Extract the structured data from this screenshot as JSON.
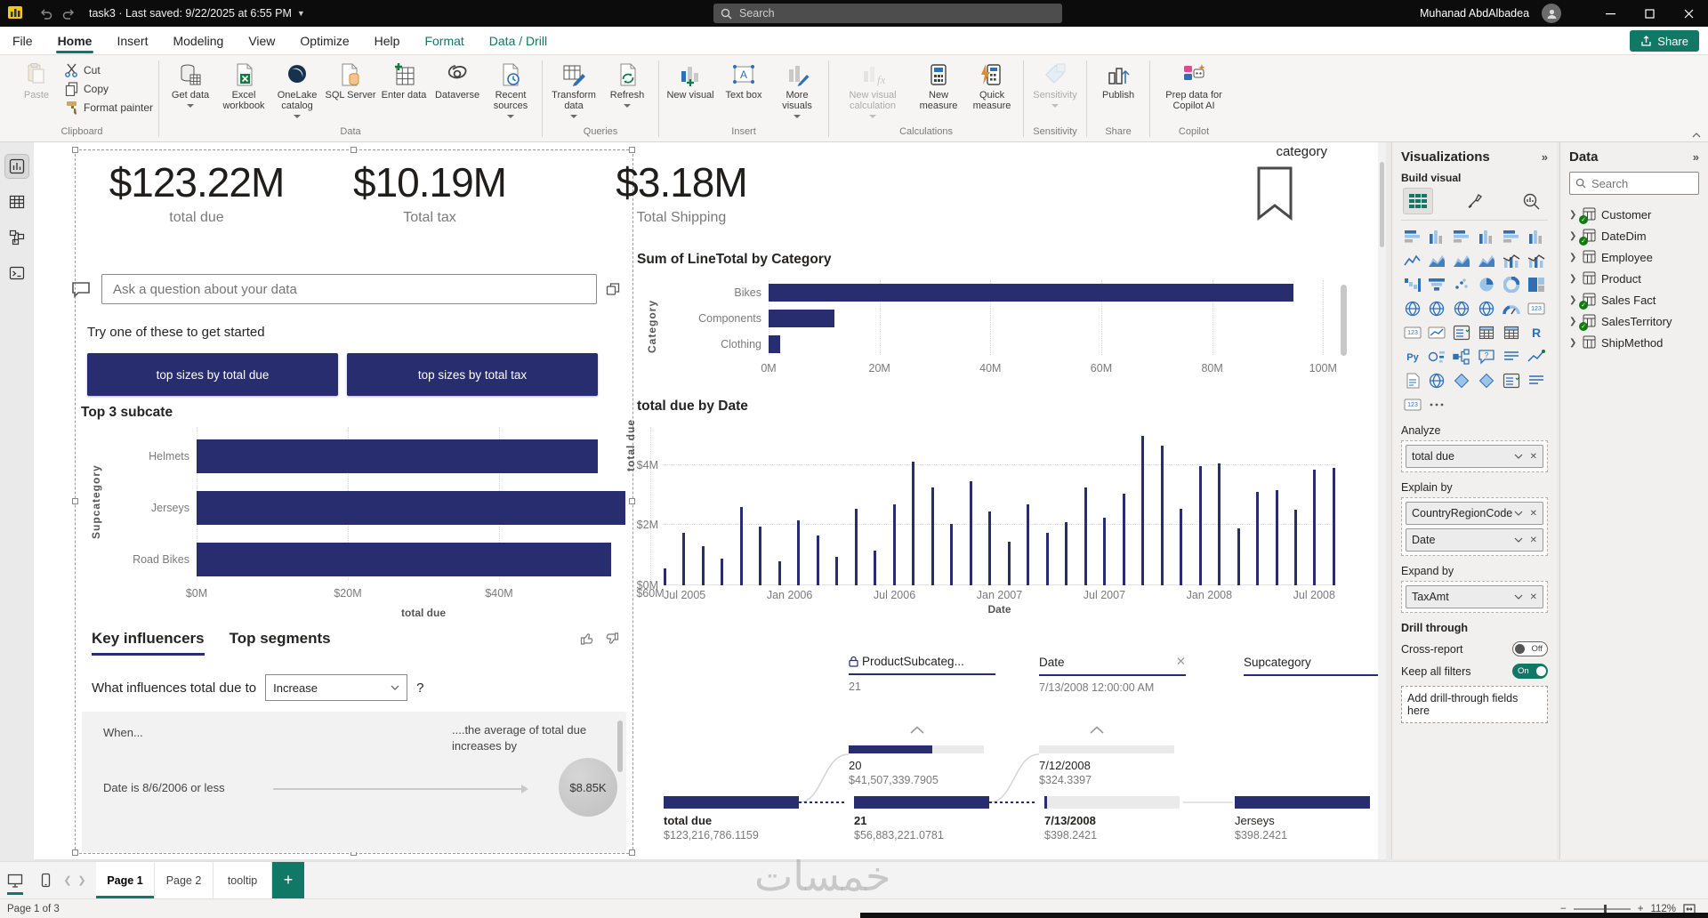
{
  "titlebar": {
    "title": "task3 · Last saved: 9/22/2025 at 6:55 PM",
    "search_placeholder": "Search",
    "user_name": "Muhanad AbdAlbadea"
  },
  "menu": {
    "tabs": [
      {
        "label": "File"
      },
      {
        "label": "Home",
        "active": true
      },
      {
        "label": "Insert"
      },
      {
        "label": "Modeling"
      },
      {
        "label": "View"
      },
      {
        "label": "Optimize"
      },
      {
        "label": "Help"
      },
      {
        "label": "Format",
        "contextual": true
      },
      {
        "label": "Data / Drill",
        "contextual": true
      }
    ],
    "share_label": "Share"
  },
  "ribbon": {
    "groups": [
      {
        "label": "Clipboard",
        "layout": "clipboard",
        "buttons": [
          {
            "label": "Paste",
            "icon": "paste",
            "disabled": true
          },
          {
            "label": "Cut",
            "icon": "cut",
            "small": true
          },
          {
            "label": "Copy",
            "icon": "copy",
            "small": true
          },
          {
            "label": "Format painter",
            "icon": "format-painter",
            "small": true
          }
        ]
      },
      {
        "label": "Data",
        "buttons": [
          {
            "label": "Get data",
            "icon": "get-data",
            "caret": true
          },
          {
            "label": "Excel workbook",
            "icon": "excel-workbook"
          },
          {
            "label": "OneLake catalog",
            "icon": "onelake-catalog",
            "caret": true
          },
          {
            "label": "SQL Server",
            "icon": "sql-server"
          },
          {
            "label": "Enter data",
            "icon": "enter-data"
          },
          {
            "label": "Dataverse",
            "icon": "dataverse"
          },
          {
            "label": "Recent sources",
            "icon": "recent-sources",
            "caret": true
          }
        ]
      },
      {
        "label": "Queries",
        "buttons": [
          {
            "label": "Transform data",
            "icon": "transform-data",
            "caret": true
          },
          {
            "label": "Refresh",
            "icon": "refresh",
            "caret": true
          }
        ]
      },
      {
        "label": "Insert",
        "buttons": [
          {
            "label": "New visual",
            "icon": "new-visual"
          },
          {
            "label": "Text box",
            "icon": "text-box"
          },
          {
            "label": "More visuals",
            "icon": "more-visuals",
            "caret": true
          }
        ]
      },
      {
        "label": "Calculations",
        "buttons": [
          {
            "label": "New visual calculation",
            "icon": "new-visual-calculation",
            "caret": true,
            "disabled": true,
            "wide": true
          },
          {
            "label": "New measure",
            "icon": "new-measure"
          },
          {
            "label": "Quick measure",
            "icon": "quick-measure"
          }
        ]
      },
      {
        "label": "Sensitivity",
        "buttons": [
          {
            "label": "Sensitivity",
            "icon": "sensitivity",
            "caret": true,
            "disabled": true
          }
        ]
      },
      {
        "label": "Share",
        "buttons": [
          {
            "label": "Publish",
            "icon": "publish"
          }
        ]
      },
      {
        "label": "Copilot",
        "buttons": [
          {
            "label": "Prep data for Copilot AI",
            "icon": "copilot",
            "wide": true
          }
        ]
      }
    ]
  },
  "view_rail": [
    {
      "name": "report-view",
      "icon": "rail-report",
      "active": true
    },
    {
      "name": "table-view",
      "icon": "rail-table"
    },
    {
      "name": "model-view",
      "icon": "rail-model"
    },
    {
      "name": "dax-query-view",
      "icon": "rail-dax"
    }
  ],
  "canvas": {
    "kpis": [
      {
        "value": "$123.22M",
        "label": "total due"
      },
      {
        "value": "$10.19M",
        "label": "Total tax"
      },
      {
        "value": "$3.18M",
        "label": "Total Shipping"
      }
    ],
    "bookmark_label": "category",
    "qa": {
      "placeholder": "Ask a question about your data",
      "try_text": "Try one of these to get started",
      "suggestions": [
        {
          "label": "top sizes by total due"
        },
        {
          "label": "top sizes by total tax"
        }
      ]
    },
    "key_influencers": {
      "tab_active": "Key influencers",
      "tab_inactive": "Top segments",
      "question": "What influences total due to",
      "dropdown_value": "Increase",
      "help": "?",
      "when_label": "When...",
      "effect_label": "....the average of total due increases by",
      "factor": "Date is 8/6/2006 or less",
      "bubble_value": "$8.85K"
    },
    "decomp_tree": {
      "columns": [
        {
          "label": "ProductSubcateg...",
          "locked": true,
          "value": "21"
        },
        {
          "label": "Date",
          "closable": true,
          "value": "7/13/2008 12:00:00 AM"
        },
        {
          "label": "Supcategory",
          "closable": true,
          "value": ""
        }
      ],
      "mid_nodes": [
        {
          "label": "20",
          "value": "$41,507,339.7905",
          "fill": 62
        },
        {
          "label": "7/12/2008",
          "value": "$324.3397",
          "fill": 0
        }
      ],
      "root_nodes": [
        {
          "label": "total due",
          "value": "$123,216,786.1159",
          "bold": true,
          "fill": 100
        },
        {
          "label": "21",
          "value": "$56,883,221.0781",
          "bold": true,
          "fill": 100
        },
        {
          "label": "7/13/2008",
          "value": "$398.2421",
          "bold": true,
          "fill": 2
        },
        {
          "label": "Jerseys",
          "value": "$398.2421",
          "fill": 100
        }
      ]
    }
  },
  "chart_data": [
    {
      "type": "bar",
      "orientation": "horizontal",
      "title": "Top 3 subcate",
      "categories": [
        "Helmets",
        "Jerseys",
        "Road Bikes"
      ],
      "values": [
        53.1,
        56.7,
        54.8
      ],
      "unit": "millions USD",
      "xlabel": "total due",
      "ylabel": "Supcategory",
      "xlim": [
        0,
        60
      ],
      "ticks": [
        {
          "label": "$0M",
          "v": 0
        },
        {
          "label": "$20M",
          "v": 20
        },
        {
          "label": "$40M",
          "v": 40
        },
        {
          "label": "$60M",
          "v": 60
        }
      ],
      "grid": true
    },
    {
      "type": "bar",
      "orientation": "horizontal",
      "title": "Sum of LineTotal by Category",
      "categories": [
        "Bikes",
        "Components",
        "Clothing"
      ],
      "values": [
        94.7,
        11.8,
        2.1
      ],
      "unit": "millions",
      "xlabel": "",
      "ylabel": "Category",
      "xlim": [
        0,
        103
      ],
      "ticks": [
        {
          "label": "0M",
          "v": 0
        },
        {
          "label": "20M",
          "v": 20
        },
        {
          "label": "40M",
          "v": 40
        },
        {
          "label": "60M",
          "v": 60
        },
        {
          "label": "80M",
          "v": 80
        },
        {
          "label": "100M",
          "v": 100
        }
      ],
      "grid": true
    },
    {
      "type": "bar",
      "orientation": "vertical",
      "title": "total due by Date",
      "xlabel": "Date",
      "ylabel": "total due",
      "ylim": [
        0,
        5.2
      ],
      "unit": "millions USD per month",
      "x_ticks": [
        "Jul 2005",
        "Jan 2006",
        "Jul 2006",
        "Jan 2007",
        "Jul 2007",
        "Jan 2008",
        "Jul 2008"
      ],
      "y_ticks": [
        {
          "label": "$0M",
          "v": 0
        },
        {
          "label": "$2M",
          "v": 2
        },
        {
          "label": "$4M",
          "v": 4
        }
      ],
      "values": [
        0.55,
        1.75,
        1.3,
        0.9,
        2.6,
        1.95,
        0.8,
        2.15,
        1.65,
        0.95,
        2.55,
        1.15,
        2.7,
        4.1,
        3.25,
        2.05,
        3.45,
        2.45,
        1.45,
        2.7,
        1.75,
        2.1,
        3.25,
        2.25,
        3.05,
        4.95,
        4.65,
        2.55,
        3.95,
        4.05,
        1.9,
        3.1,
        3.15,
        2.5,
        3.85,
        3.9
      ],
      "grid": true
    }
  ],
  "viz_pane": {
    "header": "Visualizations",
    "collapse": "»",
    "build_label": "Build visual",
    "gallery": [
      {
        "name": "stacked-bar-chart",
        "glyph": "g-bh"
      },
      {
        "name": "stacked-column-chart",
        "glyph": "g-bv"
      },
      {
        "name": "clustered-bar-chart",
        "glyph": "g-bh"
      },
      {
        "name": "clustered-column-chart",
        "glyph": "g-bv"
      },
      {
        "name": "100-stacked-bar-chart",
        "glyph": "g-bh"
      },
      {
        "name": "100-stacked-column-chart",
        "glyph": "g-bv"
      },
      {
        "name": "line-chart",
        "glyph": "g-ln"
      },
      {
        "name": "area-chart",
        "glyph": "g-ar"
      },
      {
        "name": "stacked-area-chart",
        "glyph": "g-ar"
      },
      {
        "name": "ribbon-chart",
        "glyph": "g-ar"
      },
      {
        "name": "line-and-stacked-column-chart",
        "glyph": "g-cb"
      },
      {
        "name": "line-and-clustered-column-chart",
        "glyph": "g-cb"
      },
      {
        "name": "waterfall-chart",
        "glyph": "g-wf"
      },
      {
        "name": "funnel-chart",
        "glyph": "g-fn"
      },
      {
        "name": "scatter-chart",
        "glyph": "g-sc"
      },
      {
        "name": "pie-chart",
        "glyph": "g-pi"
      },
      {
        "name": "donut-chart",
        "glyph": "g-do"
      },
      {
        "name": "treemap",
        "glyph": "g-tm"
      },
      {
        "name": "map",
        "glyph": "g-mp"
      },
      {
        "name": "filled-map",
        "glyph": "g-mp"
      },
      {
        "name": "shape-map",
        "glyph": "g-mp"
      },
      {
        "name": "azure-map",
        "glyph": "g-mp"
      },
      {
        "name": "gauge",
        "glyph": "g-gg"
      },
      {
        "name": "card",
        "glyph": "g-ca"
      },
      {
        "name": "multi-row-card",
        "glyph": "g-ca"
      },
      {
        "name": "kpi",
        "glyph": "g-kp"
      },
      {
        "name": "slicer",
        "glyph": "g-sl"
      },
      {
        "name": "table",
        "glyph": "g-tb"
      },
      {
        "name": "matrix",
        "glyph": "g-tb"
      },
      {
        "name": "r-script-visual",
        "glyph": "g-R"
      },
      {
        "name": "python-visual",
        "glyph": "g-Py"
      },
      {
        "name": "key-influencers",
        "glyph": "g-ki"
      },
      {
        "name": "decomposition-tree",
        "glyph": "g-dt"
      },
      {
        "name": "q-and-a",
        "glyph": "g-qa"
      },
      {
        "name": "smart-narrative",
        "glyph": "g-sn"
      },
      {
        "name": "metrics",
        "glyph": "g-mt"
      },
      {
        "name": "paginated-report",
        "glyph": "g-pr"
      },
      {
        "name": "arcgis-map",
        "glyph": "g-mp"
      },
      {
        "name": "power-apps",
        "glyph": "g-pa"
      },
      {
        "name": "power-automate",
        "glyph": "g-pa"
      },
      {
        "name": "button-slicer",
        "glyph": "g-sl"
      },
      {
        "name": "text-slicer",
        "glyph": "g-sn"
      },
      {
        "name": "accessible-card",
        "glyph": "g-ca"
      },
      {
        "name": "more-options",
        "glyph": "g-dots"
      }
    ],
    "analyze_label": "Analyze",
    "analyze_fields": [
      {
        "label": "total due"
      }
    ],
    "explain_label": "Explain by",
    "explain_fields": [
      {
        "label": "CountryRegionCode"
      },
      {
        "label": "Date"
      }
    ],
    "expand_label": "Expand by",
    "expand_fields": [
      {
        "label": "TaxAmt"
      }
    ],
    "drill_label": "Drill through",
    "drill_rows": [
      {
        "label": "Cross-report",
        "state": "Off",
        "on": false
      },
      {
        "label": "Keep all filters",
        "state": "On",
        "on": true
      }
    ],
    "drill_add_placeholder": "Add drill-through fields here"
  },
  "data_pane": {
    "header": "Data",
    "collapse": "»",
    "search_placeholder": "Search",
    "tables": [
      {
        "name": "Customer",
        "checked": true
      },
      {
        "name": "DateDim",
        "checked": true
      },
      {
        "name": "Employee"
      },
      {
        "name": "Product"
      },
      {
        "name": "Sales Fact",
        "checked": true
      },
      {
        "name": "SalesTerritory",
        "checked": true
      },
      {
        "name": "ShipMethod"
      }
    ]
  },
  "pages": {
    "tabs": [
      {
        "label": "Page 1",
        "active": true
      },
      {
        "label": "Page 2"
      },
      {
        "label": "tooltip"
      }
    ],
    "new_page": "+"
  },
  "statusbar": {
    "page_indicator": "Page 1 of 3",
    "zoom_level": "112%"
  },
  "watermark": "خمسات"
}
